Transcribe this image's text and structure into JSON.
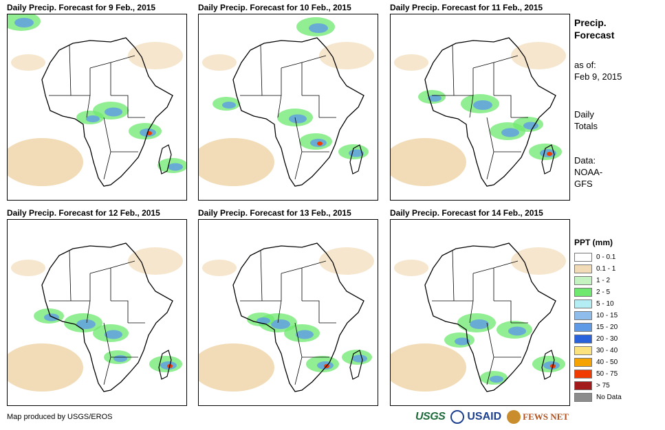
{
  "panels": [
    {
      "title": "Daily Precip. Forecast for 9 Feb., 2015"
    },
    {
      "title": "Daily Precip. Forecast for 10 Feb., 2015"
    },
    {
      "title": "Daily Precip. Forecast for 11 Feb., 2015"
    },
    {
      "title": "Daily Precip. Forecast for 12 Feb., 2015"
    },
    {
      "title": "Daily Precip. Forecast for 13 Feb., 2015"
    },
    {
      "title": "Daily Precip. Forecast for 14 Feb., 2015"
    }
  ],
  "sidebar": {
    "title_line1": "Precip.",
    "title_line2": "Forecast",
    "asof_label": "as of:",
    "asof_date": "Feb 9, 2015",
    "totals_line1": "Daily",
    "totals_line2": "Totals",
    "data_line1": "Data:",
    "data_line2": "NOAA-",
    "data_line3": "GFS"
  },
  "legend": {
    "title": "PPT (mm)",
    "items": [
      {
        "label": "0 - 0.1",
        "color": "#ffffff"
      },
      {
        "label": "0.1 - 1",
        "color": "#f2dcb8"
      },
      {
        "label": "1 - 2",
        "color": "#c4f2c0"
      },
      {
        "label": "2 - 5",
        "color": "#6ee86e"
      },
      {
        "label": "5 - 10",
        "color": "#b4eef4"
      },
      {
        "label": "10 - 15",
        "color": "#8ebdec"
      },
      {
        "label": "15 - 20",
        "color": "#5e9ae6"
      },
      {
        "label": "20 - 30",
        "color": "#2a62dc"
      },
      {
        "label": "30 - 40",
        "color": "#fbe27c"
      },
      {
        "label": "40 - 50",
        "color": "#f5a300"
      },
      {
        "label": "50 - 75",
        "color": "#f03c00"
      },
      {
        "label": "> 75",
        "color": "#a31a1a"
      },
      {
        "label": "No Data",
        "color": "#8c8c8c"
      }
    ]
  },
  "footer": {
    "credit": "Map produced by USGS/EROS"
  },
  "logos": {
    "usgs": "USGS",
    "usaid": "USAID",
    "fews": "FEWS NET"
  }
}
